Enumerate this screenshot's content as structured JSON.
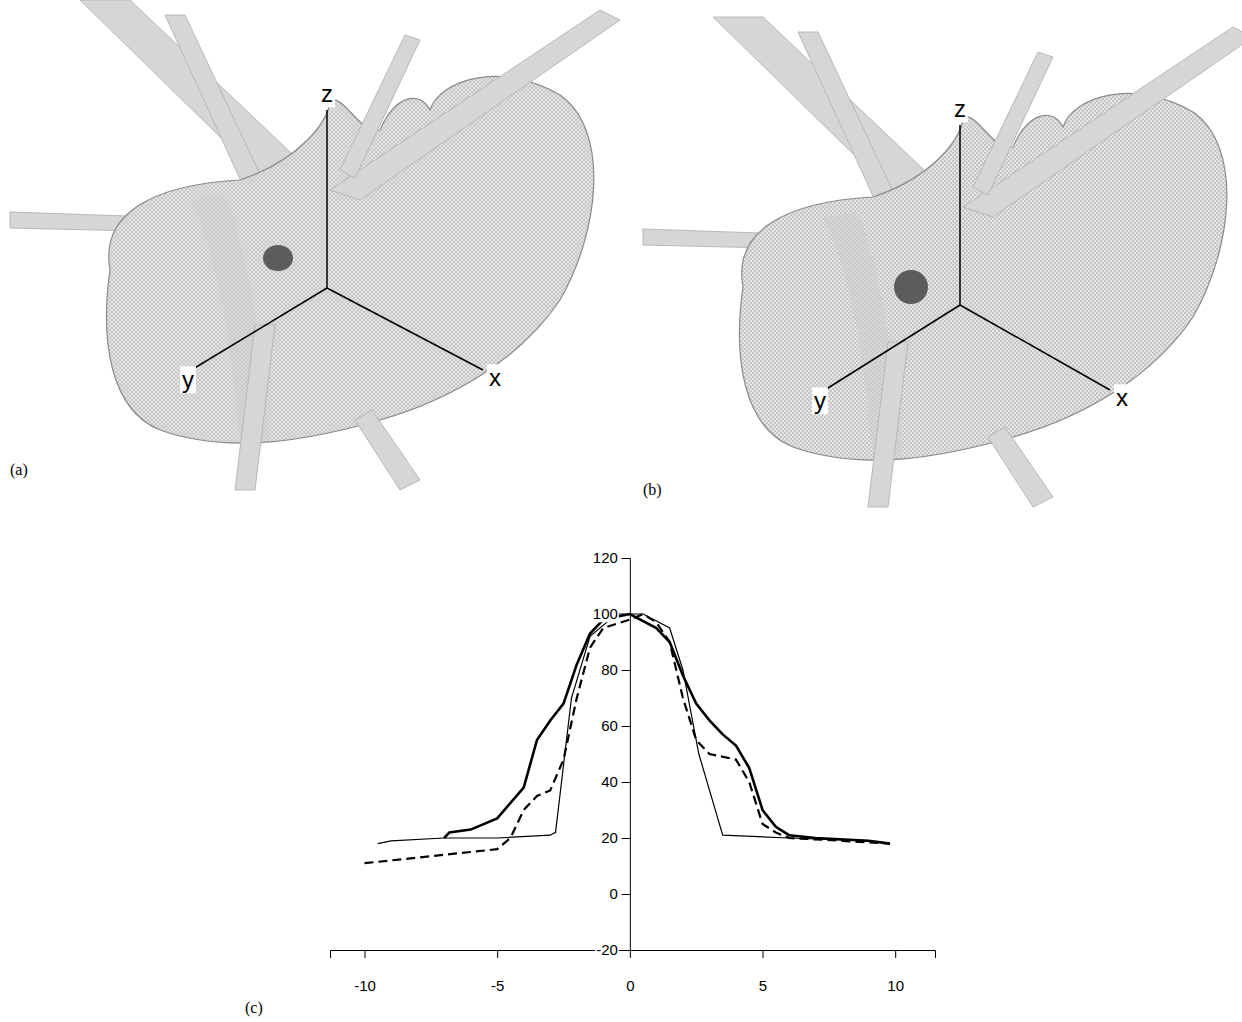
{
  "panels": [
    {
      "label": "(a)",
      "axes": [
        "z",
        "y",
        "x"
      ]
    },
    {
      "label": "(b)",
      "axes": [
        "z",
        "y",
        "x"
      ]
    }
  ],
  "chart_data": {
    "type": "line",
    "label": "(c)",
    "xlim": [
      -11.3,
      11.5
    ],
    "ylim": [
      -20,
      120
    ],
    "xticks": [
      -10,
      -5,
      0,
      5,
      10
    ],
    "yticks": [
      -20,
      0,
      20,
      40,
      60,
      80,
      100,
      120
    ],
    "grid": false,
    "series": [
      {
        "color": "#000000",
        "line_style": "solid",
        "x": [
          -9.5,
          -9,
          -7,
          -5,
          -3,
          -2.8,
          -2.2,
          -1.5,
          -0.5,
          0.5,
          1.5,
          2,
          2.6,
          3.5,
          6,
          9,
          9.8
        ],
        "values": [
          18,
          19,
          20,
          20,
          21,
          22,
          70,
          92,
          100,
          100,
          95,
          80,
          50,
          21,
          20,
          19,
          18
        ]
      },
      {
        "color": "#000000",
        "line_style": "bold",
        "x": [
          -7,
          -6.8,
          -6,
          -5,
          -4,
          -3.5,
          -3,
          -2.5,
          -2,
          -1.5,
          -1,
          0,
          1,
          1.5,
          2,
          2.5,
          3,
          3.5,
          4,
          4.5,
          5,
          5.5,
          6,
          7,
          9,
          9.8
        ],
        "values": [
          20,
          22,
          23,
          27,
          38,
          55,
          62,
          68,
          82,
          93,
          98,
          100,
          95,
          90,
          78,
          68,
          62,
          57,
          53,
          45,
          30,
          24,
          21,
          20,
          19,
          18
        ]
      },
      {
        "color": "#000000",
        "line_style": "dashed",
        "x": [
          -10,
          -8,
          -6,
          -5,
          -4.5,
          -4,
          -3.5,
          -3,
          -2.5,
          -2,
          -1.5,
          -1,
          0,
          0.5,
          1,
          1.5,
          2,
          2.5,
          3,
          4,
          4.5,
          5,
          5.5,
          6,
          8,
          9.8
        ],
        "values": [
          11,
          13,
          15,
          16,
          20,
          30,
          35,
          37,
          48,
          70,
          88,
          95,
          98,
          100,
          97,
          90,
          70,
          55,
          50,
          48,
          40,
          25,
          22,
          20,
          19,
          18
        ]
      }
    ]
  }
}
